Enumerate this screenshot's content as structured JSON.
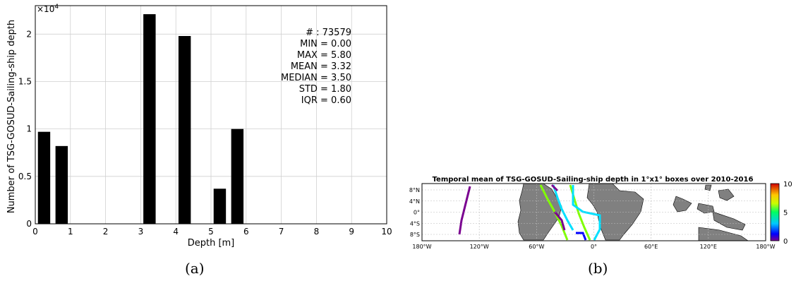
{
  "chart_data": [
    {
      "type": "bar",
      "panel_label": "(a)",
      "xlabel": "Depth [m]",
      "ylabel": "Number of TSG-GOSUD-Sailing-ship depth",
      "y_multiplier": "×10",
      "y_multiplier_exp": "4",
      "xlim": [
        0,
        10
      ],
      "ylim": [
        0,
        2.3
      ],
      "x_ticks": [
        "0",
        "1",
        "2",
        "3",
        "4",
        "5",
        "6",
        "7",
        "8",
        "9",
        "10"
      ],
      "y_ticks": [
        "0",
        "0.5",
        "1",
        "1.5",
        "2"
      ],
      "grid": true,
      "bin_width": 0.35,
      "bars": [
        {
          "x": 0.25,
          "value": 0.97
        },
        {
          "x": 0.75,
          "value": 0.82
        },
        {
          "x": 3.25,
          "value": 2.21
        },
        {
          "x": 4.25,
          "value": 1.98
        },
        {
          "x": 5.25,
          "value": 0.37
        },
        {
          "x": 5.75,
          "value": 1.0
        }
      ],
      "bar_color": "#000000",
      "stats": [
        "# : 73579",
        "MIN = 0.00",
        "MAX =  5.80",
        "MEAN = 3.32",
        "MEDIAN = 3.50",
        "STD = 1.80",
        "IQR = 0.60"
      ]
    },
    {
      "type": "heatmap",
      "panel_label": "(b)",
      "title": "Temporal mean of TSG-GOSUD-Sailing-ship depth in 1°x1° boxes over 2010-2016",
      "x_ticks": [
        "180°W",
        "120°W",
        "60°W",
        "0°",
        "60°E",
        "120°E",
        "180°W"
      ],
      "y_ticks": [
        "8°N",
        "4°N",
        "0°",
        "4°S",
        "8°S"
      ],
      "colorbar_ticks": [
        "10",
        "5",
        "0"
      ],
      "colorbar_range": [
        0,
        10
      ],
      "land_color": "#808080",
      "grid": true
    }
  ]
}
